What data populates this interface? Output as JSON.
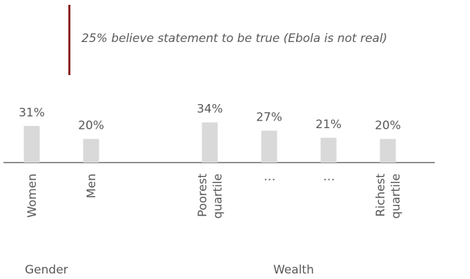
{
  "annotation": {
    "text": "25% believe statement to be true (Ebola is not real)",
    "line_color": "#8b1a1a"
  },
  "groups": {
    "gender": "Gender",
    "wealth": "Wealth"
  },
  "chart_data": {
    "type": "bar",
    "categories": [
      "Women",
      "Men",
      "Poorest quartile",
      "⋮",
      "⋮",
      "Richest quartile"
    ],
    "category_lines": [
      [
        "Women"
      ],
      [
        "Men"
      ],
      [
        "Poorest",
        "quartile"
      ],
      [
        "⋮"
      ],
      [
        "⋮"
      ],
      [
        "Richest",
        "quartile"
      ]
    ],
    "values": [
      31,
      20,
      34,
      27,
      21,
      20
    ],
    "data_labels": [
      "31%",
      "20%",
      "34%",
      "27%",
      "21%",
      "20%"
    ],
    "groups": [
      {
        "name": "Gender",
        "categories": [
          "Women",
          "Men"
        ]
      },
      {
        "name": "Wealth",
        "categories": [
          "Poorest quartile",
          "⋮",
          "⋮",
          "Richest quartile"
        ]
      }
    ],
    "bar_color": "#d9d9d9",
    "axis_color": "#8c8c8c",
    "label_color": "#595959",
    "grid": false
  }
}
